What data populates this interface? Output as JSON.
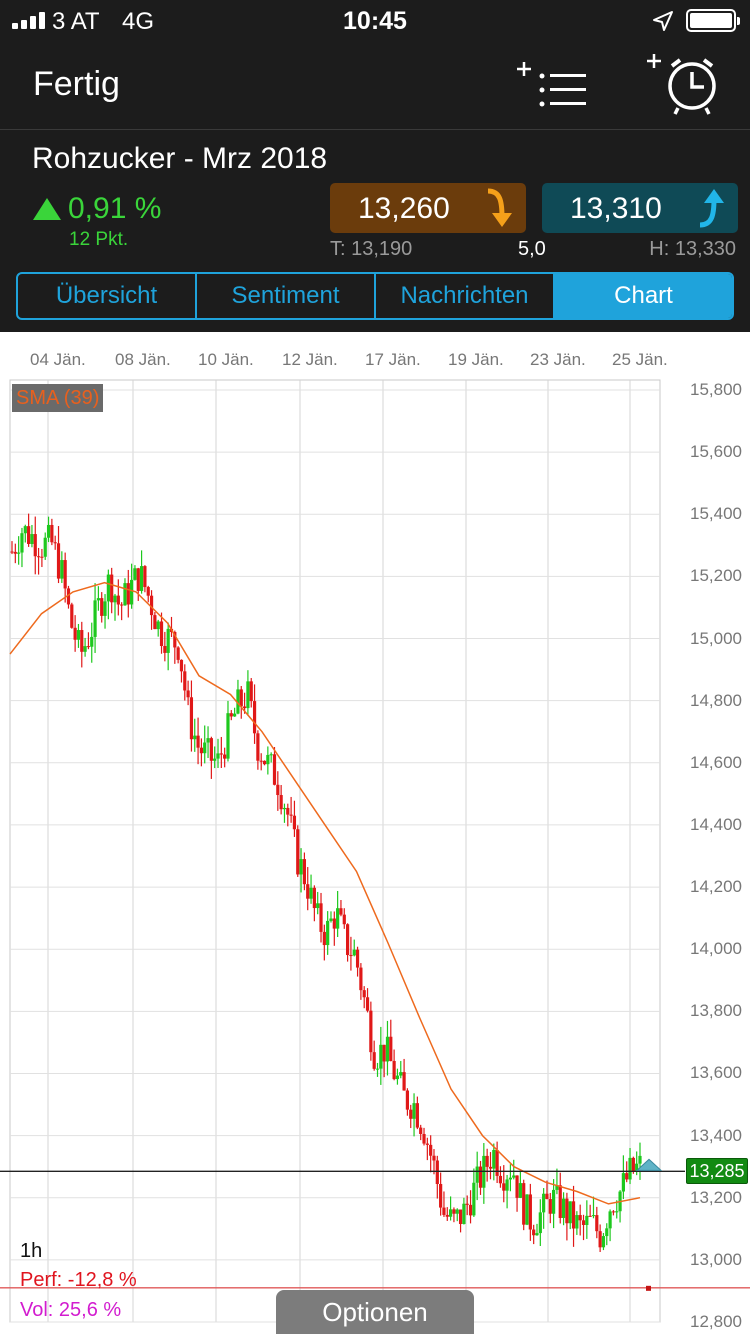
{
  "status_bar": {
    "carrier": "3 AT",
    "network": "4G",
    "time": "10:45"
  },
  "nav": {
    "done_label": "Fertig",
    "icons": [
      "add-to-watchlist-icon",
      "add-alarm-icon"
    ]
  },
  "instrument": {
    "name": "Rohzucker - Mrz 2018",
    "change_pct": "0,91 %",
    "change_pts": "12 Pkt.",
    "bid": "13,260",
    "ask": "13,310",
    "low": "T: 13,190",
    "spread": "5,0",
    "high": "H: 13,330"
  },
  "tabs": [
    {
      "label": "Übersicht",
      "active": false
    },
    {
      "label": "Sentiment",
      "active": false
    },
    {
      "label": "Nachrichten",
      "active": false
    },
    {
      "label": "Chart",
      "active": true
    }
  ],
  "chart_data": {
    "type": "candlestick",
    "interval": "1h",
    "indicator": "SMA (39)",
    "current_price": "13,285",
    "perf": "Perf: -12,8 %",
    "vol": "Vol: 25,6 %",
    "x_tick_labels": [
      "04 Jän.",
      "08 Jän.",
      "10 Jän.",
      "12 Jän.",
      "17 Jän.",
      "19 Jän.",
      "23 Jän.",
      "25 Jän."
    ],
    "y_tick_labels": [
      "15,800",
      "15,600",
      "15,400",
      "15,200",
      "15,000",
      "14,800",
      "14,600",
      "14,400",
      "14,200",
      "14,000",
      "13,800",
      "13,600",
      "13,400",
      "13,200",
      "13,000",
      "12,800"
    ],
    "ylim": [
      12.8,
      15.8
    ],
    "close_path": [
      15.28,
      15.35,
      15.33,
      15.3,
      15.31,
      15.22,
      15.05,
      14.95,
      15.02,
      15.12,
      15.19,
      15.1,
      15.16,
      15.21,
      15.13,
      15.03,
      15.0,
      14.98,
      14.75,
      14.65,
      14.62,
      14.6,
      14.7,
      14.78,
      14.82,
      14.66,
      14.6,
      14.55,
      14.45,
      14.3,
      14.22,
      14.1,
      14.05,
      14.12,
      14.02,
      13.98,
      13.82,
      13.66,
      13.68,
      13.6,
      13.52,
      13.5,
      13.42,
      13.3,
      13.15,
      13.12,
      13.15,
      13.22,
      13.28,
      13.35,
      13.28,
      13.3,
      13.18,
      13.12,
      13.15,
      13.2,
      13.17,
      13.13,
      13.1,
      13.12,
      13.08,
      13.18,
      13.22,
      13.28,
      13.3
    ],
    "sma": [
      14.95,
      15.08,
      15.15,
      15.18,
      15.15,
      15.05,
      14.88,
      14.82,
      14.7,
      14.55,
      14.4,
      14.25,
      14.02,
      13.78,
      13.55,
      13.4,
      13.3,
      13.25,
      13.22,
      13.18,
      13.2
    ]
  },
  "options_label": "Optionen"
}
